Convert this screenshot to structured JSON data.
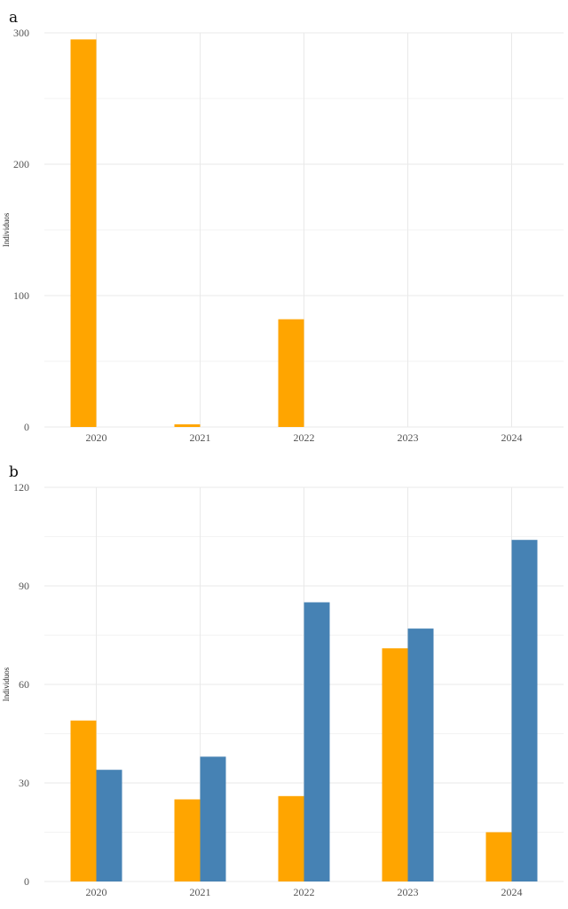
{
  "chart_data": [
    {
      "type": "bar",
      "panel_label": "a",
      "title": "",
      "xlabel": "",
      "ylabel": "Individuos",
      "categories": [
        "2020",
        "2021",
        "2022",
        "2023",
        "2024"
      ],
      "ylim": [
        0,
        300
      ],
      "yticks": [
        0,
        100,
        200,
        300
      ],
      "grid": true,
      "series": [
        {
          "color": "#FFA500",
          "values": [
            295,
            2,
            82,
            0,
            0
          ]
        },
        {
          "color": "#4682B4",
          "values": [
            0,
            0,
            0,
            0,
            0
          ]
        }
      ]
    },
    {
      "type": "bar",
      "panel_label": "b",
      "title": "",
      "xlabel": "",
      "ylabel": "Individuos",
      "categories": [
        "2020",
        "2021",
        "2022",
        "2023",
        "2024"
      ],
      "ylim": [
        0,
        120
      ],
      "yticks": [
        0,
        30,
        60,
        90,
        120
      ],
      "grid": true,
      "series": [
        {
          "color": "#FFA500",
          "values": [
            49,
            25,
            26,
            71,
            15
          ]
        },
        {
          "color": "#4682B4",
          "values": [
            34,
            38,
            85,
            77,
            104
          ]
        }
      ]
    }
  ]
}
